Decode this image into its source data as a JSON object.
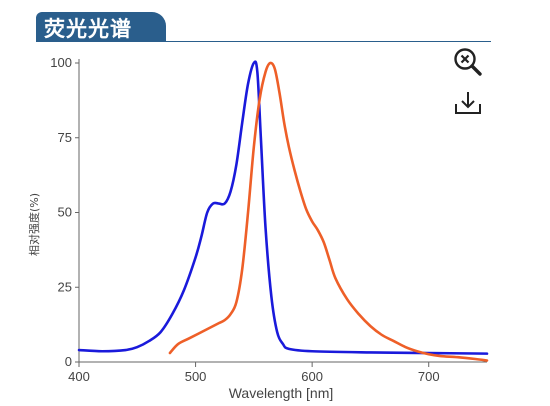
{
  "header": {
    "title": "荧光光谱"
  },
  "toolbar": {
    "zoom_icon": "zoom-out-icon",
    "download_icon": "download-icon"
  },
  "colors": {
    "header_bg": "#2a5e8c",
    "series_1": "#1a1adb",
    "series_2": "#ee5f28"
  },
  "chart_data": {
    "type": "line",
    "title": "",
    "xlabel": "Wavelength [nm]",
    "ylabel": "相对强度(%)",
    "xlim": [
      400,
      750
    ],
    "ylim": [
      0,
      100
    ],
    "xticks": [
      400,
      500,
      600,
      700
    ],
    "yticks": [
      0,
      25,
      50,
      75,
      100
    ],
    "grid": false,
    "legend": "none",
    "series": [
      {
        "color": "#1a1adb",
        "points": [
          [
            400,
            4
          ],
          [
            420,
            3.6
          ],
          [
            440,
            4
          ],
          [
            450,
            5
          ],
          [
            460,
            7
          ],
          [
            470,
            10
          ],
          [
            480,
            16
          ],
          [
            490,
            24
          ],
          [
            500,
            35
          ],
          [
            505,
            42
          ],
          [
            510,
            50
          ],
          [
            515,
            53
          ],
          [
            520,
            53
          ],
          [
            525,
            53
          ],
          [
            530,
            57
          ],
          [
            535,
            66
          ],
          [
            540,
            80
          ],
          [
            545,
            93
          ],
          [
            550,
            100
          ],
          [
            553,
            97
          ],
          [
            556,
            75
          ],
          [
            560,
            45
          ],
          [
            565,
            22
          ],
          [
            570,
            10
          ],
          [
            575,
            6
          ],
          [
            580,
            4.4
          ],
          [
            600,
            3.6
          ],
          [
            650,
            3.2
          ],
          [
            700,
            3
          ],
          [
            750,
            2.8
          ]
        ]
      },
      {
        "color": "#ee5f28",
        "points": [
          [
            478,
            3
          ],
          [
            485,
            6
          ],
          [
            495,
            8
          ],
          [
            510,
            11
          ],
          [
            520,
            13
          ],
          [
            525,
            14
          ],
          [
            530,
            16
          ],
          [
            535,
            20
          ],
          [
            540,
            31
          ],
          [
            545,
            50
          ],
          [
            550,
            72
          ],
          [
            555,
            88
          ],
          [
            560,
            97
          ],
          [
            564,
            100
          ],
          [
            568,
            98
          ],
          [
            572,
            90
          ],
          [
            576,
            80
          ],
          [
            580,
            72
          ],
          [
            585,
            64
          ],
          [
            590,
            57
          ],
          [
            595,
            51
          ],
          [
            600,
            47
          ],
          [
            605,
            44
          ],
          [
            610,
            40
          ],
          [
            615,
            34
          ],
          [
            620,
            28
          ],
          [
            630,
            21
          ],
          [
            640,
            16
          ],
          [
            650,
            12
          ],
          [
            660,
            9
          ],
          [
            670,
            7
          ],
          [
            680,
            5
          ],
          [
            690,
            3.6
          ],
          [
            700,
            2.6
          ],
          [
            710,
            2
          ],
          [
            725,
            1.6
          ],
          [
            740,
            1
          ],
          [
            750,
            0.5
          ]
        ]
      }
    ]
  }
}
